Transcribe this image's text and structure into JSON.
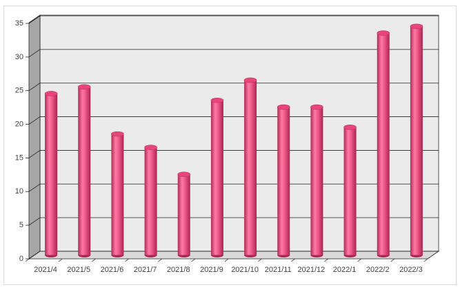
{
  "chart_data": {
    "type": "bar",
    "categories": [
      "2021/4",
      "2021/5",
      "2021/6",
      "2021/7",
      "2021/8",
      "2021/9",
      "2021/10",
      "2021/11",
      "2021/12",
      "2022/1",
      "2022/2",
      "2022/3"
    ],
    "values": [
      24,
      25,
      18,
      16,
      12,
      23,
      26,
      22,
      22,
      19,
      33,
      34
    ],
    "color": "#e8457a",
    "ylim": [
      0,
      35
    ],
    "yticks": [
      0,
      5,
      10,
      15,
      20,
      25,
      30,
      35
    ],
    "grid": true
  }
}
